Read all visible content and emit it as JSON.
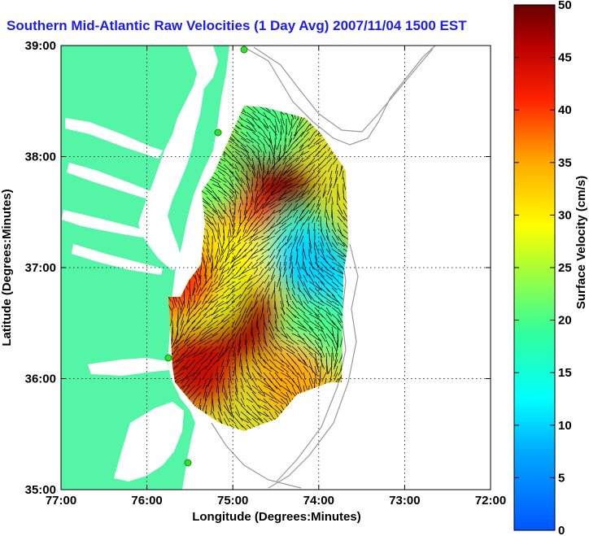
{
  "chart_data": {
    "type": "heatmap",
    "title": "Southern Mid-Atlantic Raw Velocities (1 Day Avg) 2007/11/04 1500 EST",
    "xlabel": "Longitude (Degrees:Minutes)",
    "ylabel": "Latitude (Degrees:Minutes)",
    "colorbar_label": "Surface Velocity (cm/s)",
    "x_ticks": [
      "77:00",
      "76:00",
      "75:00",
      "74:00",
      "73:00",
      "72:00"
    ],
    "x_tick_values": [
      -77,
      -76,
      -75,
      -74,
      -73,
      -72
    ],
    "y_ticks": [
      "39:00",
      "38:00",
      "37:00",
      "36:00",
      "35:00"
    ],
    "y_tick_values": [
      39,
      38,
      37,
      36,
      35
    ],
    "xlim": [
      -77,
      -72
    ],
    "ylim": [
      35,
      39
    ],
    "colorbar_ticks": [
      0,
      5,
      10,
      15,
      20,
      25,
      30,
      35,
      40,
      45,
      50
    ],
    "colorbar_range": [
      0,
      50
    ],
    "grid": true,
    "colors": {
      "land": "#55f5a8",
      "title": "#1a1aff",
      "ocean": "#ffffff",
      "station": "#33dd33"
    },
    "field_regions": [
      {
        "lon": -74.5,
        "lat": 37.6,
        "speed": 50
      },
      {
        "lon": -74.7,
        "lat": 37.9,
        "speed": 48
      },
      {
        "lon": -74.9,
        "lat": 37.4,
        "speed": 42
      },
      {
        "lon": -75.0,
        "lat": 37.1,
        "speed": 30
      },
      {
        "lon": -74.2,
        "lat": 37.2,
        "speed": 18
      },
      {
        "lon": -73.8,
        "lat": 36.8,
        "speed": 12
      },
      {
        "lon": -74.1,
        "lat": 37.05,
        "speed": 10
      },
      {
        "lon": -74.9,
        "lat": 36.5,
        "speed": 47
      },
      {
        "lon": -75.4,
        "lat": 36.1,
        "speed": 45
      },
      {
        "lon": -75.3,
        "lat": 36.8,
        "speed": 28
      },
      {
        "lon": -74.0,
        "lat": 36.4,
        "speed": 20
      },
      {
        "lon": -74.6,
        "lat": 38.3,
        "speed": 20
      },
      {
        "lon": -75.3,
        "lat": 37.8,
        "speed": 22
      },
      {
        "lon": -75.6,
        "lat": 36.9,
        "speed": 40
      },
      {
        "lon": -74.3,
        "lat": 36.0,
        "speed": 35
      }
    ]
  }
}
